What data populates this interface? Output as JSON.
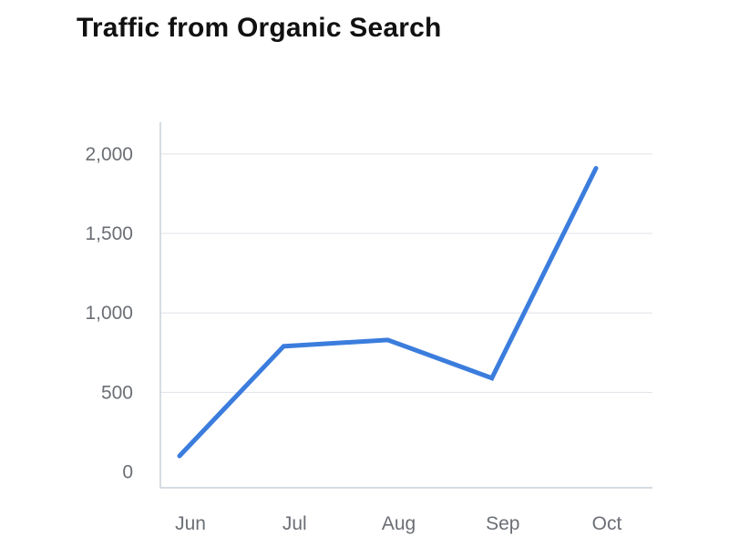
{
  "chart_data": {
    "type": "line",
    "title": "Traffic from Organic Search",
    "xlabel": "",
    "ylabel": "",
    "categories": [
      "Jun",
      "Jul",
      "Aug",
      "Sep",
      "Oct"
    ],
    "y_ticks": [
      0,
      500,
      1000,
      1500,
      2000
    ],
    "y_tick_labels": [
      "0",
      "500",
      "1,000",
      "1,500",
      "2,000"
    ],
    "ylim": [
      -100,
      2200
    ],
    "grid": true,
    "legend": "none",
    "series": [
      {
        "values": [
          100,
          790,
          830,
          590,
          1910
        ],
        "color": "#3b7ddd"
      }
    ]
  }
}
